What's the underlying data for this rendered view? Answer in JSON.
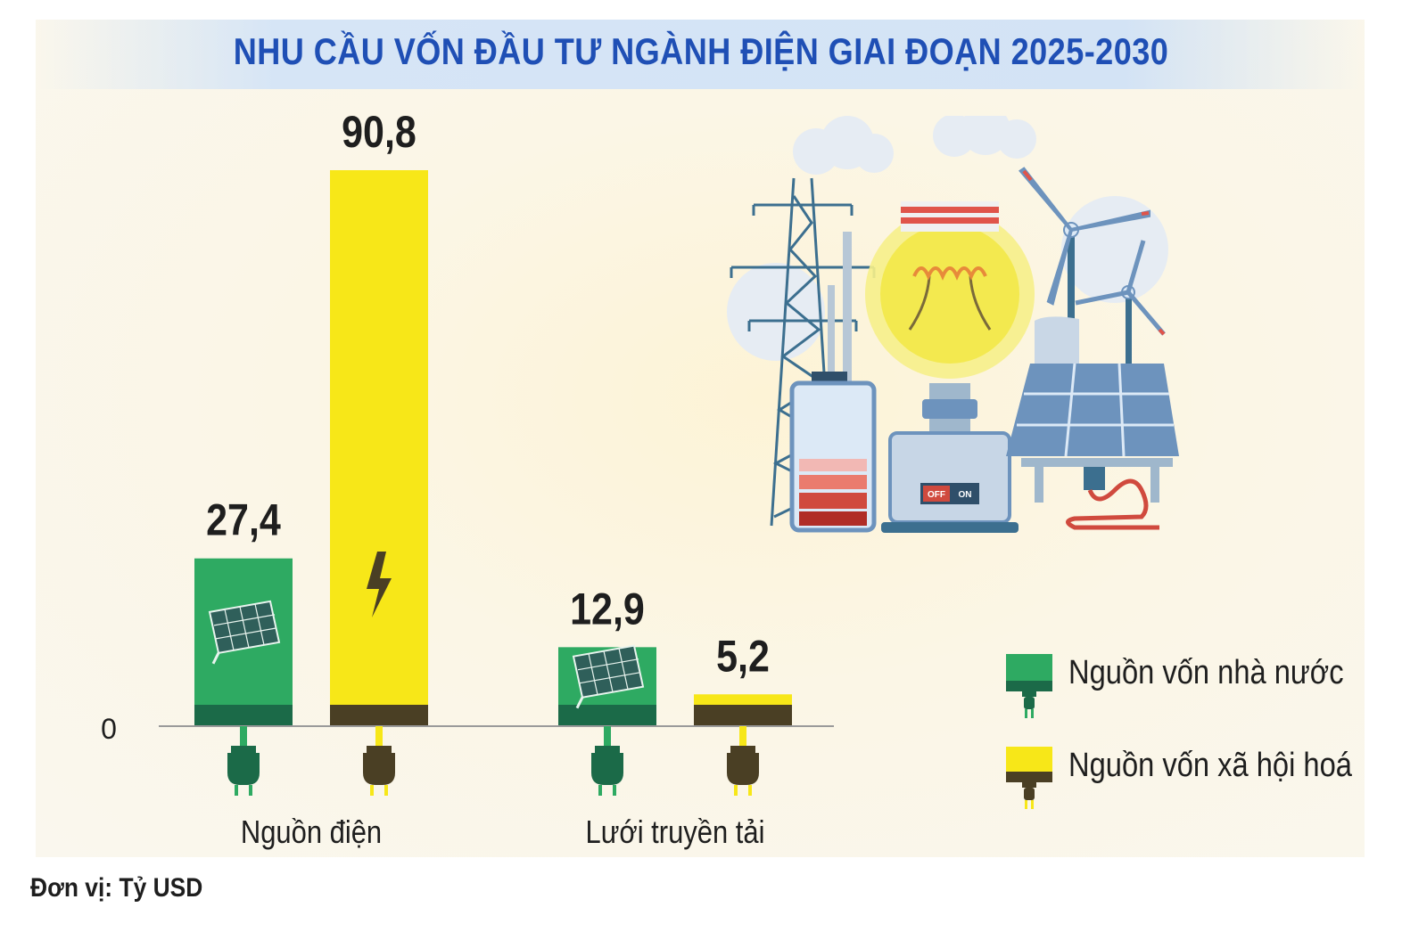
{
  "title": "NHU CẦU VỐN ĐẦU TƯ NGÀNH ĐIỆN GIAI ĐOẠN 2025-2030",
  "unit_label": "Đơn vị: Tỷ USD",
  "legend": {
    "state": "Nguồn vốn nhà nước",
    "social": "Nguồn vốn xã hội hoá"
  },
  "illustration": {
    "switch_off": "OFF",
    "switch_on": "ON"
  },
  "colors": {
    "state": "#2eaa62",
    "state_dark": "#1b6a48",
    "social": "#f7e718",
    "social_dark": "#4a3f24",
    "title": "#1f4fb5"
  },
  "chart_data": {
    "type": "bar",
    "categories": [
      "Nguồn điện",
      "Lưới truyền tải"
    ],
    "series": [
      {
        "name": "Nguồn vốn nhà nước",
        "values": [
          27.4,
          12.9
        ],
        "labels": [
          "27,4",
          "12,9"
        ]
      },
      {
        "name": "Nguồn vốn xã hội hoá",
        "values": [
          90.8,
          5.2
        ],
        "labels": [
          "90,8",
          "5,2"
        ]
      }
    ],
    "ytick_label": "0",
    "grid": false,
    "legend_position": "right"
  }
}
